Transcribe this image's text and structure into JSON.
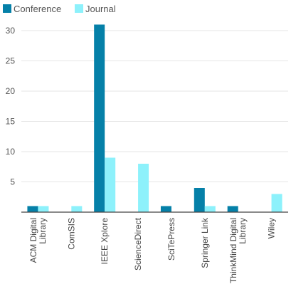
{
  "chart_data": {
    "type": "bar",
    "title": "",
    "xlabel": "",
    "ylabel": "",
    "ylim": [
      0,
      33
    ],
    "yticks": [
      5,
      10,
      15,
      20,
      25,
      30
    ],
    "grid": "horizontal",
    "legend_position": "top-left",
    "categories": [
      [
        "ACM Digital",
        "Library"
      ],
      [
        "ComSIS"
      ],
      [
        "IEEE Xplore"
      ],
      [
        "ScienceDirect"
      ],
      [
        "SciTePress"
      ],
      [
        "Springer Link"
      ],
      [
        "ThinkMind Digital",
        "Library"
      ],
      [
        "Wiley"
      ]
    ],
    "series": [
      {
        "name": "Conference",
        "color": "#0580a8",
        "values": [
          1,
          0,
          31,
          0,
          1,
          4,
          1,
          0
        ]
      },
      {
        "name": "Journal",
        "color": "#8df1fb",
        "values": [
          1,
          1,
          9,
          8,
          0,
          1,
          0,
          3
        ]
      }
    ]
  }
}
